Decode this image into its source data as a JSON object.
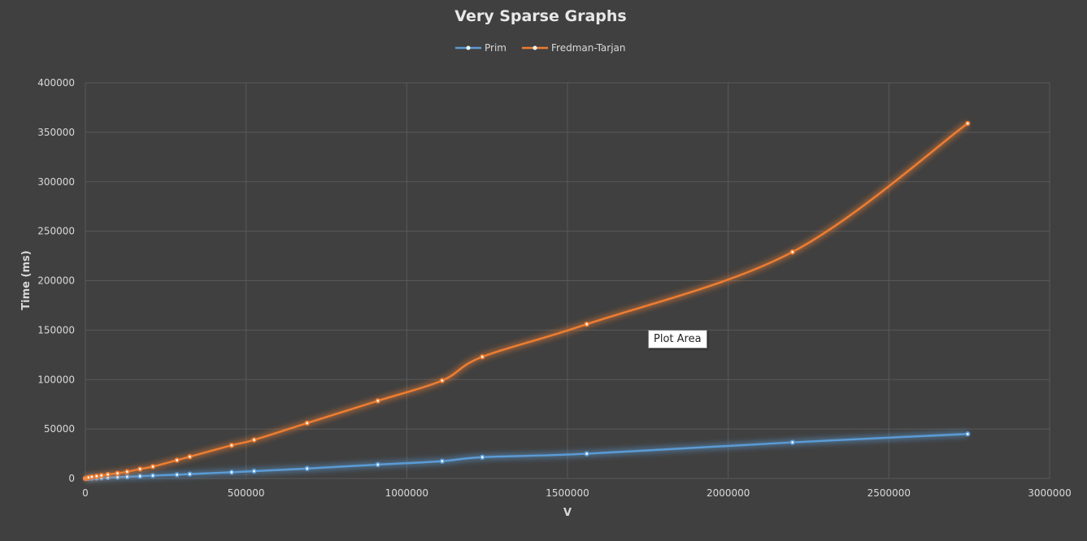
{
  "chart_data": {
    "type": "line",
    "title": "Very Sparse Graphs",
    "xlabel": "V",
    "ylabel": "Time (ms)",
    "xlim": [
      0,
      3000000
    ],
    "ylim": [
      0,
      400000
    ],
    "x_ticks": [
      0,
      500000,
      1000000,
      1500000,
      2000000,
      2500000,
      3000000
    ],
    "y_ticks": [
      0,
      50000,
      100000,
      150000,
      200000,
      250000,
      300000,
      350000,
      400000
    ],
    "grid": true,
    "legend_position": "top",
    "series": [
      {
        "name": "Prim",
        "color": "#5b9bd5",
        "points": [
          [
            0,
            0
          ],
          [
            5000,
            50
          ],
          [
            10000,
            120
          ],
          [
            20000,
            250
          ],
          [
            35000,
            400
          ],
          [
            50000,
            600
          ],
          [
            70000,
            900
          ],
          [
            100000,
            1300
          ],
          [
            130000,
            1700
          ],
          [
            170000,
            2300
          ],
          [
            210000,
            2900
          ],
          [
            285000,
            3800
          ],
          [
            325000,
            4400
          ],
          [
            455000,
            6300
          ],
          [
            525000,
            7400
          ],
          [
            690000,
            10000
          ],
          [
            910000,
            14000
          ],
          [
            1110000,
            17500
          ],
          [
            1235000,
            21500
          ],
          [
            1560000,
            25000
          ],
          [
            2200000,
            36500
          ],
          [
            2745000,
            45000
          ]
        ]
      },
      {
        "name": "Fredman-Tarjan",
        "color": "#ed7d31",
        "points": [
          [
            0,
            0
          ],
          [
            5000,
            500
          ],
          [
            10000,
            1000
          ],
          [
            20000,
            1600
          ],
          [
            35000,
            2300
          ],
          [
            50000,
            3000
          ],
          [
            70000,
            4000
          ],
          [
            100000,
            5200
          ],
          [
            130000,
            6800
          ],
          [
            170000,
            9500
          ],
          [
            210000,
            12000
          ],
          [
            285000,
            18500
          ],
          [
            325000,
            22000
          ],
          [
            455000,
            33500
          ],
          [
            525000,
            39000
          ],
          [
            690000,
            56000
          ],
          [
            910000,
            78500
          ],
          [
            1110000,
            99000
          ],
          [
            1235000,
            123000
          ],
          [
            1560000,
            156000
          ],
          [
            2200000,
            229000
          ],
          [
            2745000,
            359000
          ]
        ]
      }
    ]
  },
  "tooltip": {
    "text": "Plot Area"
  }
}
